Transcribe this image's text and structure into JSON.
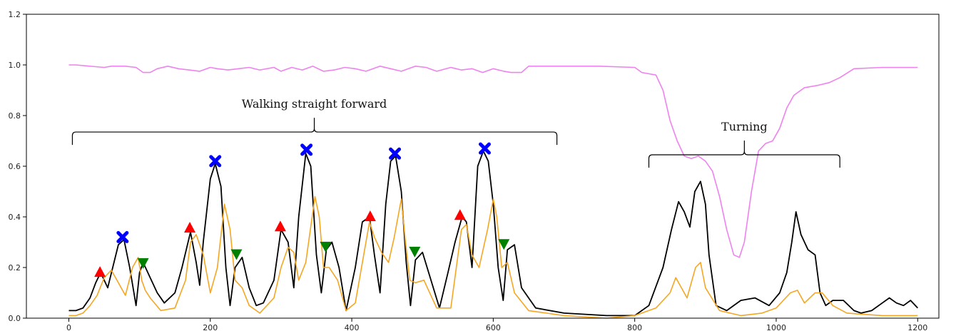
{
  "chart_data": {
    "type": "line",
    "title": "",
    "xlabel": "",
    "ylabel": "",
    "xlim": [
      -60,
      1230
    ],
    "ylim": [
      0.0,
      1.2
    ],
    "xticks": [
      0,
      200,
      400,
      600,
      800,
      1000,
      1200
    ],
    "yticks": [
      0.0,
      0.2,
      0.4,
      0.6,
      0.8,
      1.0,
      1.2
    ],
    "xtick_labels": [
      "0",
      "200",
      "400",
      "600",
      "800",
      "1000",
      "1200"
    ],
    "ytick_labels": [
      "0.0",
      "0.2",
      "0.4",
      "0.6",
      "0.8",
      "1.0",
      "1.2"
    ],
    "grid": false,
    "series": [
      {
        "color": "#ee82ee",
        "x": [
          0,
          10,
          30,
          50,
          60,
          80,
          95,
          105,
          115,
          125,
          140,
          155,
          170,
          185,
          200,
          210,
          225,
          240,
          255,
          270,
          290,
          300,
          315,
          330,
          345,
          360,
          375,
          390,
          405,
          420,
          440,
          455,
          470,
          490,
          505,
          520,
          540,
          555,
          570,
          585,
          600,
          615,
          625,
          640,
          650,
          680,
          700,
          750,
          800,
          810,
          830,
          840,
          850,
          860,
          870,
          880,
          890,
          900,
          910,
          920,
          930,
          940,
          948,
          955,
          965,
          975,
          985,
          995,
          1005,
          1015,
          1025,
          1040,
          1060,
          1075,
          1090,
          1110,
          1150,
          1200
        ],
        "y": [
          1.0,
          1.0,
          0.995,
          0.99,
          0.995,
          0.995,
          0.99,
          0.97,
          0.97,
          0.985,
          0.995,
          0.985,
          0.98,
          0.975,
          0.99,
          0.985,
          0.98,
          0.985,
          0.99,
          0.98,
          0.99,
          0.975,
          0.99,
          0.98,
          0.995,
          0.975,
          0.98,
          0.99,
          0.985,
          0.975,
          0.995,
          0.985,
          0.975,
          0.995,
          0.99,
          0.975,
          0.99,
          0.98,
          0.985,
          0.97,
          0.985,
          0.975,
          0.97,
          0.97,
          0.995,
          0.995,
          0.995,
          0.995,
          0.99,
          0.97,
          0.96,
          0.9,
          0.78,
          0.7,
          0.64,
          0.63,
          0.64,
          0.62,
          0.58,
          0.48,
          0.35,
          0.25,
          0.24,
          0.3,
          0.5,
          0.66,
          0.69,
          0.7,
          0.75,
          0.83,
          0.88,
          0.91,
          0.92,
          0.93,
          0.95,
          0.985,
          0.99,
          0.99
        ]
      },
      {
        "color": "#000000",
        "x": [
          0,
          10,
          20,
          30,
          38,
          45,
          55,
          62,
          70,
          78,
          86,
          95,
          100,
          105,
          115,
          125,
          135,
          150,
          160,
          172,
          180,
          185,
          190,
          200,
          207,
          215,
          222,
          228,
          235,
          245,
          255,
          265,
          275,
          290,
          300,
          310,
          318,
          325,
          335,
          342,
          350,
          357,
          364,
          372,
          382,
          392,
          405,
          415,
          425,
          432,
          440,
          448,
          455,
          462,
          470,
          477,
          483,
          490,
          500,
          512,
          524,
          536,
          546,
          556,
          562,
          570,
          578,
          586,
          593,
          600,
          607,
          614,
          620,
          630,
          640,
          660,
          700,
          760,
          800,
          820,
          840,
          852,
          862,
          870,
          878,
          885,
          893,
          900,
          905,
          915,
          930,
          950,
          970,
          990,
          1005,
          1015,
          1022,
          1028,
          1035,
          1045,
          1055,
          1062,
          1070,
          1080,
          1095,
          1110,
          1120,
          1135,
          1150,
          1160,
          1170,
          1180,
          1190,
          1200
        ],
        "y": [
          0.03,
          0.03,
          0.04,
          0.08,
          0.14,
          0.18,
          0.12,
          0.2,
          0.29,
          0.31,
          0.2,
          0.05,
          0.18,
          0.22,
          0.16,
          0.1,
          0.06,
          0.1,
          0.2,
          0.34,
          0.22,
          0.13,
          0.3,
          0.55,
          0.61,
          0.52,
          0.2,
          0.05,
          0.2,
          0.24,
          0.12,
          0.05,
          0.06,
          0.15,
          0.35,
          0.3,
          0.12,
          0.4,
          0.65,
          0.6,
          0.25,
          0.1,
          0.27,
          0.3,
          0.2,
          0.03,
          0.2,
          0.38,
          0.4,
          0.25,
          0.1,
          0.45,
          0.62,
          0.64,
          0.5,
          0.22,
          0.05,
          0.23,
          0.26,
          0.15,
          0.04,
          0.18,
          0.3,
          0.4,
          0.38,
          0.2,
          0.6,
          0.66,
          0.62,
          0.45,
          0.2,
          0.07,
          0.27,
          0.29,
          0.12,
          0.04,
          0.02,
          0.01,
          0.01,
          0.05,
          0.2,
          0.35,
          0.46,
          0.42,
          0.36,
          0.5,
          0.54,
          0.45,
          0.25,
          0.05,
          0.03,
          0.07,
          0.08,
          0.05,
          0.1,
          0.18,
          0.3,
          0.42,
          0.33,
          0.27,
          0.25,
          0.1,
          0.05,
          0.07,
          0.07,
          0.03,
          0.02,
          0.03,
          0.06,
          0.08,
          0.06,
          0.05,
          0.07,
          0.04
        ]
      },
      {
        "color": "#f5a623",
        "x": [
          0,
          10,
          20,
          30,
          40,
          50,
          60,
          70,
          80,
          90,
          98,
          103,
          108,
          115,
          130,
          150,
          165,
          172,
          180,
          190,
          200,
          210,
          220,
          228,
          235,
          245,
          255,
          270,
          290,
          300,
          310,
          318,
          325,
          335,
          348,
          354,
          360,
          368,
          380,
          392,
          405,
          425,
          432,
          442,
          452,
          460,
          470,
          476,
          482,
          490,
          502,
          520,
          540,
          555,
          562,
          570,
          580,
          592,
          600,
          605,
          612,
          620,
          630,
          650,
          700,
          760,
          800,
          830,
          850,
          858,
          866,
          874,
          886,
          893,
          900,
          920,
          950,
          980,
          1000,
          1020,
          1030,
          1040,
          1055,
          1065,
          1080,
          1100,
          1150,
          1200
        ],
        "y": [
          0.01,
          0.01,
          0.02,
          0.05,
          0.09,
          0.16,
          0.19,
          0.14,
          0.09,
          0.2,
          0.24,
          0.15,
          0.11,
          0.08,
          0.03,
          0.04,
          0.15,
          0.3,
          0.33,
          0.25,
          0.1,
          0.2,
          0.45,
          0.35,
          0.15,
          0.12,
          0.05,
          0.02,
          0.08,
          0.2,
          0.28,
          0.26,
          0.15,
          0.22,
          0.48,
          0.4,
          0.2,
          0.2,
          0.15,
          0.03,
          0.06,
          0.38,
          0.32,
          0.26,
          0.22,
          0.32,
          0.47,
          0.3,
          0.15,
          0.14,
          0.15,
          0.04,
          0.04,
          0.35,
          0.37,
          0.25,
          0.2,
          0.35,
          0.47,
          0.4,
          0.2,
          0.22,
          0.1,
          0.03,
          0.01,
          0.0,
          0.01,
          0.04,
          0.1,
          0.16,
          0.12,
          0.08,
          0.2,
          0.22,
          0.12,
          0.03,
          0.01,
          0.02,
          0.04,
          0.1,
          0.11,
          0.06,
          0.1,
          0.1,
          0.05,
          0.02,
          0.01,
          0.01
        ]
      }
    ],
    "markers": [
      {
        "shape": "triangle-up",
        "color": "#ff0000",
        "points": [
          [
            44,
            0.18
          ],
          [
            171,
            0.355
          ],
          [
            299,
            0.36
          ],
          [
            426,
            0.4
          ],
          [
            553,
            0.405
          ]
        ]
      },
      {
        "shape": "x",
        "color": "#0000ff",
        "points": [
          [
            76,
            0.32
          ],
          [
            207,
            0.62
          ],
          [
            336,
            0.665
          ],
          [
            461,
            0.65
          ],
          [
            588,
            0.67
          ]
        ]
      },
      {
        "shape": "triangle-down",
        "color": "#008000",
        "points": [
          [
            105,
            0.22
          ],
          [
            237,
            0.255
          ],
          [
            363,
            0.285
          ],
          [
            489,
            0.265
          ],
          [
            615,
            0.295
          ]
        ]
      }
    ],
    "annotations": [
      {
        "text": "Walking straight forward",
        "x_start": 5,
        "x_end": 690,
        "bracket_y": 0.735,
        "text_x": 347,
        "text_y": 0.845
      },
      {
        "text": "Turning",
        "x_start": 820,
        "x_end": 1090,
        "bracket_y": 0.645,
        "text_x": 955,
        "text_y": 0.755
      }
    ]
  }
}
